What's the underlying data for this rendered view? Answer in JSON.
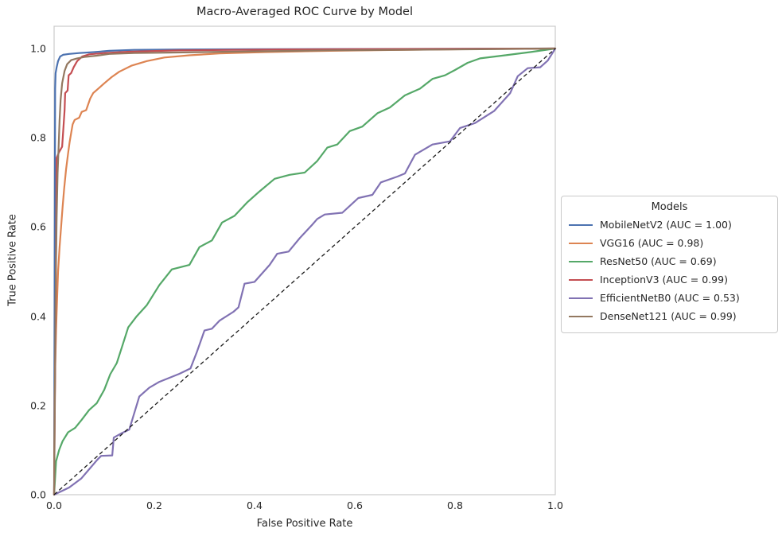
{
  "chart_data": {
    "type": "line",
    "title": "Macro-Averaged ROC Curve by Model",
    "xlabel": "False Positive Rate",
    "ylabel": "True Positive Rate",
    "xlim": [
      0.0,
      1.0
    ],
    "ylim": [
      0.0,
      1.05
    ],
    "x_ticks": [
      "0.0",
      "0.2",
      "0.4",
      "0.6",
      "0.8",
      "1.0"
    ],
    "y_ticks": [
      "0.0",
      "0.2",
      "0.4",
      "0.6",
      "0.8",
      "1.0"
    ],
    "grid": false,
    "legend": {
      "title": "Models",
      "position": "right of axes, vertically centered"
    },
    "reference_line": {
      "name": "chance-diagonal",
      "style": "dashed",
      "color": "#1a1a1a",
      "points": [
        [
          0,
          0
        ],
        [
          1,
          1
        ]
      ]
    },
    "series": [
      {
        "name": "MobileNetV2",
        "auc": "1.00",
        "label": "MobileNetV2 (AUC = 1.00)",
        "color": "#4C72B0",
        "points": [
          [
            0,
            0
          ],
          [
            0.002,
            0.91
          ],
          [
            0.003,
            0.945
          ],
          [
            0.005,
            0.958
          ],
          [
            0.008,
            0.972
          ],
          [
            0.012,
            0.982
          ],
          [
            0.018,
            0.986
          ],
          [
            0.03,
            0.988
          ],
          [
            0.05,
            0.99
          ],
          [
            0.08,
            0.992
          ],
          [
            0.11,
            0.995
          ],
          [
            0.16,
            0.997
          ],
          [
            0.25,
            0.998
          ],
          [
            0.4,
            0.9985
          ],
          [
            0.6,
            0.999
          ],
          [
            0.8,
            0.9995
          ],
          [
            1,
            1
          ]
        ]
      },
      {
        "name": "VGG16",
        "auc": "0.98",
        "label": "VGG16 (AUC = 0.98)",
        "color": "#DD8452",
        "points": [
          [
            0,
            0
          ],
          [
            0.001,
            0.18
          ],
          [
            0.002,
            0.28
          ],
          [
            0.004,
            0.37
          ],
          [
            0.006,
            0.44
          ],
          [
            0.008,
            0.5
          ],
          [
            0.011,
            0.555
          ],
          [
            0.014,
            0.6
          ],
          [
            0.017,
            0.645
          ],
          [
            0.02,
            0.685
          ],
          [
            0.024,
            0.73
          ],
          [
            0.028,
            0.765
          ],
          [
            0.031,
            0.79
          ],
          [
            0.034,
            0.81
          ],
          [
            0.037,
            0.83
          ],
          [
            0.041,
            0.84
          ],
          [
            0.05,
            0.845
          ],
          [
            0.055,
            0.858
          ],
          [
            0.064,
            0.862
          ],
          [
            0.072,
            0.888
          ],
          [
            0.078,
            0.9
          ],
          [
            0.09,
            0.912
          ],
          [
            0.1,
            0.922
          ],
          [
            0.115,
            0.936
          ],
          [
            0.13,
            0.948
          ],
          [
            0.155,
            0.962
          ],
          [
            0.185,
            0.972
          ],
          [
            0.22,
            0.98
          ],
          [
            0.27,
            0.985
          ],
          [
            0.33,
            0.989
          ],
          [
            0.42,
            0.992
          ],
          [
            0.55,
            0.995
          ],
          [
            0.7,
            0.997
          ],
          [
            0.85,
            0.999
          ],
          [
            1,
            1
          ]
        ]
      },
      {
        "name": "ResNet50",
        "auc": "0.69",
        "label": "ResNet50 (AUC = 0.69)",
        "color": "#55A868",
        "points": [
          [
            0,
            0
          ],
          [
            0.004,
            0.075
          ],
          [
            0.01,
            0.1
          ],
          [
            0.017,
            0.12
          ],
          [
            0.028,
            0.14
          ],
          [
            0.042,
            0.15
          ],
          [
            0.055,
            0.168
          ],
          [
            0.07,
            0.19
          ],
          [
            0.085,
            0.205
          ],
          [
            0.1,
            0.235
          ],
          [
            0.112,
            0.27
          ],
          [
            0.125,
            0.295
          ],
          [
            0.135,
            0.33
          ],
          [
            0.148,
            0.375
          ],
          [
            0.165,
            0.4
          ],
          [
            0.185,
            0.425
          ],
          [
            0.21,
            0.47
          ],
          [
            0.235,
            0.505
          ],
          [
            0.27,
            0.515
          ],
          [
            0.29,
            0.555
          ],
          [
            0.315,
            0.57
          ],
          [
            0.335,
            0.61
          ],
          [
            0.36,
            0.625
          ],
          [
            0.385,
            0.655
          ],
          [
            0.41,
            0.68
          ],
          [
            0.44,
            0.708
          ],
          [
            0.47,
            0.717
          ],
          [
            0.5,
            0.722
          ],
          [
            0.525,
            0.748
          ],
          [
            0.545,
            0.778
          ],
          [
            0.565,
            0.785
          ],
          [
            0.59,
            0.815
          ],
          [
            0.615,
            0.825
          ],
          [
            0.645,
            0.855
          ],
          [
            0.67,
            0.868
          ],
          [
            0.7,
            0.895
          ],
          [
            0.73,
            0.91
          ],
          [
            0.755,
            0.932
          ],
          [
            0.78,
            0.94
          ],
          [
            0.8,
            0.952
          ],
          [
            0.825,
            0.968
          ],
          [
            0.85,
            0.978
          ],
          [
            0.9,
            0.985
          ],
          [
            0.95,
            0.992
          ],
          [
            1,
            1
          ]
        ]
      },
      {
        "name": "InceptionV3",
        "auc": "0.99",
        "label": "InceptionV3 (AUC = 0.99)",
        "color": "#C44E52",
        "points": [
          [
            0,
            0
          ],
          [
            0.003,
            0.4
          ],
          [
            0.005,
            0.755
          ],
          [
            0.01,
            0.768
          ],
          [
            0.016,
            0.78
          ],
          [
            0.019,
            0.83
          ],
          [
            0.021,
            0.862
          ],
          [
            0.022,
            0.9
          ],
          [
            0.027,
            0.906
          ],
          [
            0.029,
            0.94
          ],
          [
            0.034,
            0.945
          ],
          [
            0.039,
            0.958
          ],
          [
            0.046,
            0.972
          ],
          [
            0.056,
            0.982
          ],
          [
            0.07,
            0.987
          ],
          [
            0.1,
            0.99
          ],
          [
            0.15,
            0.993
          ],
          [
            0.25,
            0.996
          ],
          [
            0.45,
            0.998
          ],
          [
            0.7,
            0.999
          ],
          [
            1,
            1
          ]
        ]
      },
      {
        "name": "EfficientNetB0",
        "auc": "0.53",
        "label": "EfficientNetB0 (AUC = 0.53)",
        "color": "#8172B3",
        "points": [
          [
            0,
            0
          ],
          [
            0.015,
            0.008
          ],
          [
            0.03,
            0.016
          ],
          [
            0.054,
            0.036
          ],
          [
            0.07,
            0.057
          ],
          [
            0.086,
            0.078
          ],
          [
            0.094,
            0.087
          ],
          [
            0.116,
            0.088
          ],
          [
            0.119,
            0.128
          ],
          [
            0.135,
            0.138
          ],
          [
            0.15,
            0.146
          ],
          [
            0.17,
            0.22
          ],
          [
            0.19,
            0.24
          ],
          [
            0.21,
            0.253
          ],
          [
            0.25,
            0.271
          ],
          [
            0.272,
            0.283
          ],
          [
            0.285,
            0.32
          ],
          [
            0.3,
            0.368
          ],
          [
            0.315,
            0.372
          ],
          [
            0.33,
            0.39
          ],
          [
            0.358,
            0.41
          ],
          [
            0.368,
            0.42
          ],
          [
            0.38,
            0.473
          ],
          [
            0.4,
            0.477
          ],
          [
            0.43,
            0.515
          ],
          [
            0.445,
            0.54
          ],
          [
            0.468,
            0.545
          ],
          [
            0.49,
            0.575
          ],
          [
            0.515,
            0.605
          ],
          [
            0.525,
            0.618
          ],
          [
            0.54,
            0.628
          ],
          [
            0.575,
            0.632
          ],
          [
            0.607,
            0.665
          ],
          [
            0.635,
            0.672
          ],
          [
            0.652,
            0.7
          ],
          [
            0.685,
            0.713
          ],
          [
            0.7,
            0.72
          ],
          [
            0.72,
            0.762
          ],
          [
            0.755,
            0.785
          ],
          [
            0.79,
            0.792
          ],
          [
            0.81,
            0.822
          ],
          [
            0.84,
            0.833
          ],
          [
            0.878,
            0.86
          ],
          [
            0.91,
            0.9
          ],
          [
            0.925,
            0.938
          ],
          [
            0.945,
            0.956
          ],
          [
            0.97,
            0.958
          ],
          [
            0.985,
            0.973
          ],
          [
            1,
            1
          ]
        ]
      },
      {
        "name": "DenseNet121",
        "auc": "0.99",
        "label": "DenseNet121 (AUC = 0.99)",
        "color": "#937860",
        "points": [
          [
            0,
            0
          ],
          [
            0.003,
            0.45
          ],
          [
            0.005,
            0.62
          ],
          [
            0.007,
            0.72
          ],
          [
            0.009,
            0.78
          ],
          [
            0.011,
            0.84
          ],
          [
            0.013,
            0.885
          ],
          [
            0.016,
            0.922
          ],
          [
            0.021,
            0.95
          ],
          [
            0.026,
            0.965
          ],
          [
            0.034,
            0.974
          ],
          [
            0.046,
            0.978
          ],
          [
            0.06,
            0.981
          ],
          [
            0.085,
            0.984
          ],
          [
            0.11,
            0.988
          ],
          [
            0.16,
            0.99
          ],
          [
            0.23,
            0.991
          ],
          [
            0.35,
            0.993
          ],
          [
            0.55,
            0.996
          ],
          [
            0.8,
            0.998
          ],
          [
            1,
            1
          ]
        ]
      }
    ]
  },
  "colors": {
    "background": "#ffffff",
    "spine": "#cbcbcb",
    "text": "#262626",
    "legend_border": "#c9c9c9"
  }
}
